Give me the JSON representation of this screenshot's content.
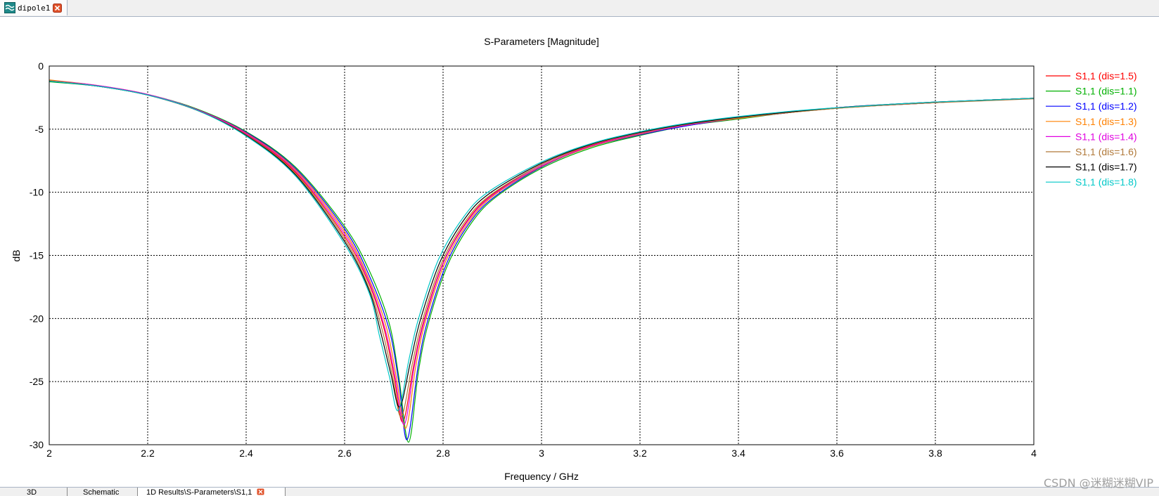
{
  "window": {
    "tab_label": "dipole1"
  },
  "bottom_tabs": [
    "3D",
    "Schematic",
    "1D Results\\S-Parameters\\S1,1"
  ],
  "watermark": "CSDN @迷糊迷糊VIP",
  "colors": {
    "grid": "#000000",
    "close_button": "#e0522a",
    "tab_icon": "#1f8a8a"
  },
  "chart_data": {
    "type": "line",
    "title": "S-Parameters [Magnitude]",
    "xlabel": "Frequency / GHz",
    "ylabel": "dB",
    "xlim": [
      2,
      4
    ],
    "ylim": [
      -30,
      0
    ],
    "xticks": [
      2,
      2.2,
      2.4,
      2.6,
      2.8,
      3,
      3.2,
      3.4,
      3.6,
      3.8,
      4
    ],
    "yticks": [
      0,
      -5,
      -10,
      -15,
      -20,
      -25,
      -30
    ],
    "xtick_labels": [
      "2",
      "2.2",
      "2.4",
      "2.6",
      "2.8",
      "3",
      "3.2",
      "3.4",
      "3.6",
      "3.8",
      "4"
    ],
    "ytick_labels": [
      "0",
      "-5",
      "-10",
      "-15",
      "-20",
      "-25",
      "-30"
    ],
    "grid": true,
    "legend_position": "right",
    "series": [
      {
        "name": "S1,1 (dis=1.5)",
        "color": "#ff0000",
        "f0": 2.718,
        "min": -28.2,
        "shift": 0.0,
        "x": [
          2.0,
          2.1,
          2.2,
          2.3,
          2.4,
          2.5,
          2.6,
          2.65,
          2.68,
          2.7,
          2.718,
          2.74,
          2.76,
          2.8,
          2.85,
          2.9,
          3.0,
          3.1,
          3.2,
          3.3,
          3.4,
          3.5,
          3.6,
          3.7,
          3.8,
          3.9,
          4.0
        ],
        "y": [
          -1.2,
          -1.6,
          -2.3,
          -3.5,
          -5.4,
          -8.4,
          -13.5,
          -17.3,
          -20.8,
          -24.5,
          -28.2,
          -23.8,
          -20.3,
          -15.6,
          -12.2,
          -10.2,
          -7.8,
          -6.3,
          -5.3,
          -4.6,
          -4.1,
          -3.7,
          -3.3,
          -3.1,
          -2.9,
          -2.7,
          -2.55
        ]
      },
      {
        "name": "S1,1 (dis=1.1)",
        "color": "#00b000",
        "f0": 2.73,
        "min": -29.8,
        "shift": 0.012,
        "x": [
          2.0,
          2.1,
          2.2,
          2.3,
          2.4,
          2.5,
          2.6,
          2.65,
          2.69,
          2.71,
          2.73,
          2.75,
          2.77,
          2.81,
          2.86,
          2.91,
          3.0,
          3.1,
          3.2,
          3.3,
          3.4,
          3.5,
          3.6,
          3.7,
          3.8,
          3.9,
          4.0
        ],
        "y": [
          -1.25,
          -1.6,
          -2.25,
          -3.4,
          -5.2,
          -8.0,
          -12.7,
          -16.2,
          -20.3,
          -24.6,
          -29.8,
          -24.2,
          -20.4,
          -15.7,
          -12.3,
          -10.3,
          -8.1,
          -6.5,
          -5.5,
          -4.7,
          -4.2,
          -3.7,
          -3.35,
          -3.1,
          -2.9,
          -2.7,
          -2.55
        ]
      },
      {
        "name": "S1,1 (dis=1.2)",
        "color": "#0000ff",
        "f0": 2.727,
        "min": -29.6,
        "shift": 0.009,
        "x": [
          2.0,
          2.1,
          2.2,
          2.3,
          2.4,
          2.5,
          2.6,
          2.65,
          2.69,
          2.71,
          2.727,
          2.75,
          2.77,
          2.81,
          2.86,
          2.91,
          3.0,
          3.1,
          3.2,
          3.3,
          3.4,
          3.5,
          3.6,
          3.7,
          3.8,
          3.9,
          4.0
        ],
        "y": [
          -1.2,
          -1.6,
          -2.25,
          -3.45,
          -5.25,
          -8.1,
          -12.9,
          -16.6,
          -20.8,
          -25.0,
          -29.6,
          -23.6,
          -20.0,
          -15.4,
          -12.1,
          -10.2,
          -8.0,
          -6.4,
          -5.45,
          -4.7,
          -4.15,
          -3.7,
          -3.3,
          -3.05,
          -2.85,
          -2.7,
          -2.55
        ]
      },
      {
        "name": "S1,1 (dis=1.3)",
        "color": "#ff8000",
        "f0": 2.724,
        "min": -28.7,
        "shift": 0.006,
        "x": [
          2.0,
          2.1,
          2.2,
          2.3,
          2.4,
          2.5,
          2.6,
          2.65,
          2.685,
          2.705,
          2.724,
          2.745,
          2.765,
          2.805,
          2.855,
          2.905,
          3.0,
          3.1,
          3.2,
          3.3,
          3.4,
          3.5,
          3.6,
          3.7,
          3.8,
          3.9,
          4.0
        ],
        "y": [
          -1.1,
          -1.55,
          -2.25,
          -3.45,
          -5.3,
          -8.2,
          -13.1,
          -16.9,
          -20.7,
          -24.6,
          -28.7,
          -23.7,
          -20.1,
          -15.5,
          -12.2,
          -10.2,
          -7.95,
          -6.4,
          -5.4,
          -4.65,
          -4.15,
          -3.7,
          -3.35,
          -3.1,
          -2.9,
          -2.7,
          -2.55
        ]
      },
      {
        "name": "S1,1 (dis=1.4)",
        "color": "#e000e0",
        "f0": 2.721,
        "min": -28.4,
        "shift": 0.003,
        "x": [
          2.0,
          2.1,
          2.2,
          2.3,
          2.4,
          2.5,
          2.6,
          2.65,
          2.682,
          2.702,
          2.721,
          2.742,
          2.762,
          2.802,
          2.852,
          2.902,
          3.0,
          3.1,
          3.2,
          3.3,
          3.4,
          3.5,
          3.6,
          3.7,
          3.8,
          3.9,
          4.0
        ],
        "y": [
          -1.15,
          -1.55,
          -2.25,
          -3.45,
          -5.35,
          -8.3,
          -13.3,
          -17.1,
          -20.8,
          -24.5,
          -28.4,
          -23.7,
          -20.2,
          -15.5,
          -12.2,
          -10.2,
          -7.9,
          -6.35,
          -5.35,
          -4.65,
          -4.1,
          -3.7,
          -3.3,
          -3.1,
          -2.9,
          -2.7,
          -2.55
        ]
      },
      {
        "name": "S1,1 (dis=1.6)",
        "color": "#b07838",
        "f0": 2.715,
        "min": -27.8,
        "shift": -0.003,
        "x": [
          2.0,
          2.1,
          2.2,
          2.3,
          2.4,
          2.5,
          2.6,
          2.65,
          2.677,
          2.697,
          2.715,
          2.737,
          2.757,
          2.797,
          2.847,
          2.897,
          3.0,
          3.1,
          3.2,
          3.3,
          3.4,
          3.5,
          3.6,
          3.7,
          3.8,
          3.9,
          4.0
        ],
        "y": [
          -1.15,
          -1.6,
          -2.3,
          -3.5,
          -5.45,
          -8.5,
          -13.7,
          -17.6,
          -21.0,
          -24.5,
          -27.8,
          -23.7,
          -20.3,
          -15.6,
          -12.2,
          -10.2,
          -7.8,
          -6.25,
          -5.3,
          -4.6,
          -4.1,
          -3.7,
          -3.35,
          -3.1,
          -2.9,
          -2.75,
          -2.6
        ]
      },
      {
        "name": "S1,1 (dis=1.7)",
        "color": "#000000",
        "f0": 2.712,
        "min": -27.0,
        "shift": -0.006,
        "x": [
          2.0,
          2.1,
          2.2,
          2.3,
          2.4,
          2.5,
          2.6,
          2.65,
          2.674,
          2.694,
          2.712,
          2.734,
          2.754,
          2.794,
          2.844,
          2.894,
          3.0,
          3.1,
          3.2,
          3.3,
          3.4,
          3.5,
          3.6,
          3.7,
          3.8,
          3.9,
          4.0
        ],
        "y": [
          -1.2,
          -1.6,
          -2.3,
          -3.5,
          -5.5,
          -8.6,
          -13.9,
          -17.8,
          -21.2,
          -24.4,
          -27.0,
          -23.4,
          -20.1,
          -15.5,
          -12.1,
          -10.1,
          -7.7,
          -6.2,
          -5.25,
          -4.55,
          -4.05,
          -3.65,
          -3.3,
          -3.05,
          -2.85,
          -2.7,
          -2.55
        ]
      },
      {
        "name": "S1,1 (dis=1.8)",
        "color": "#00c8c8",
        "f0": 2.709,
        "min": -27.3,
        "shift": -0.009,
        "x": [
          2.0,
          2.1,
          2.2,
          2.3,
          2.4,
          2.5,
          2.6,
          2.65,
          2.671,
          2.691,
          2.709,
          2.731,
          2.751,
          2.791,
          2.841,
          2.891,
          3.0,
          3.1,
          3.2,
          3.3,
          3.4,
          3.5,
          3.6,
          3.7,
          3.8,
          3.9,
          4.0
        ],
        "y": [
          -1.2,
          -1.6,
          -2.3,
          -3.5,
          -5.55,
          -8.7,
          -14.1,
          -18.0,
          -21.4,
          -24.6,
          -27.3,
          -23.2,
          -19.9,
          -15.3,
          -12.0,
          -10.0,
          -7.6,
          -6.15,
          -5.2,
          -4.5,
          -4.0,
          -3.6,
          -3.3,
          -3.05,
          -2.85,
          -2.7,
          -2.55
        ]
      }
    ]
  }
}
